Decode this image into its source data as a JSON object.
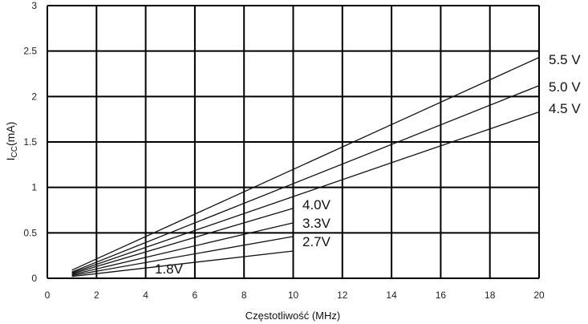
{
  "chart_data": {
    "type": "line",
    "xlabel": "Częstotliwość (MHz)",
    "ylabel_main": "I",
    "ylabel_sub": "CC",
    "ylabel_rest": "(mA)",
    "xlim": [
      0,
      20
    ],
    "ylim": [
      0,
      3
    ],
    "xticks": [
      "0",
      "2",
      "4",
      "6",
      "8",
      "10",
      "12",
      "14",
      "16",
      "18",
      "20"
    ],
    "yticks": [
      "0",
      "0.5",
      "1",
      "1.5",
      "2",
      "2.5",
      "3"
    ],
    "grid": true,
    "series": [
      {
        "name": "5.5 V",
        "x": [
          1,
          20
        ],
        "y": [
          0.09,
          2.43
        ]
      },
      {
        "name": "5.0 V",
        "x": [
          1,
          20
        ],
        "y": [
          0.07,
          2.12
        ]
      },
      {
        "name": "4.5 V",
        "x": [
          1,
          20
        ],
        "y": [
          0.06,
          1.83
        ]
      },
      {
        "name": "4.0V",
        "x": [
          1,
          10
        ],
        "y": [
          0.05,
          0.77
        ]
      },
      {
        "name": "3.3V",
        "x": [
          1,
          10
        ],
        "y": [
          0.04,
          0.61
        ]
      },
      {
        "name": "2.7V",
        "x": [
          1,
          10
        ],
        "y": [
          0.03,
          0.46
        ]
      },
      {
        "name": "1.8V",
        "x": [
          1,
          10
        ],
        "y": [
          0.02,
          0.3
        ]
      }
    ]
  }
}
